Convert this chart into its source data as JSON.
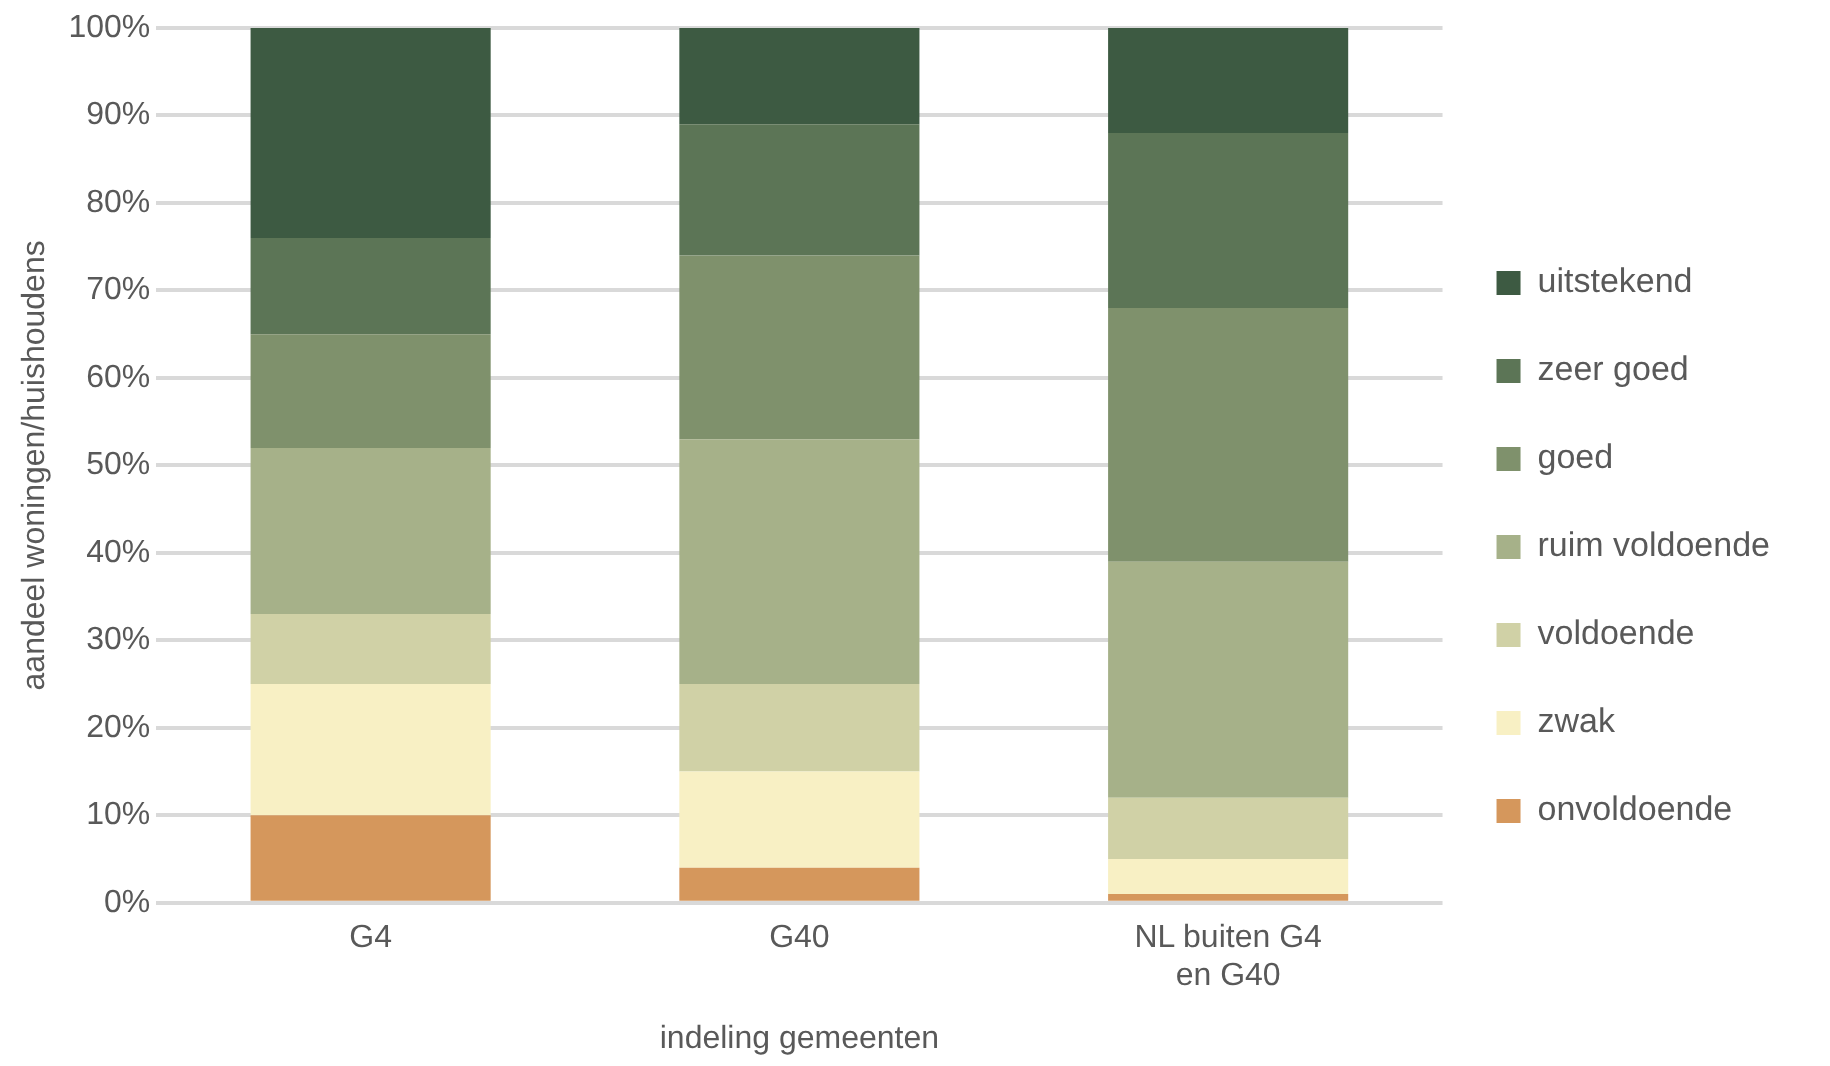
{
  "chart_data": {
    "type": "bar",
    "stacked": true,
    "xlabel": "indeling gemeenten",
    "ylabel": "aandeel woningen/huishoudens",
    "categories": [
      "G4",
      "G40",
      "NL buiten G4 en G40"
    ],
    "series": [
      {
        "name": "onvoldoende",
        "color": "#d5975c",
        "values": [
          10,
          4,
          1
        ]
      },
      {
        "name": "zwak",
        "color": "#f8f0c4",
        "values": [
          15,
          11,
          4
        ]
      },
      {
        "name": "voldoende",
        "color": "#d0d1a6",
        "values": [
          8,
          10,
          7
        ]
      },
      {
        "name": "ruim voldoende",
        "color": "#a6b189",
        "values": [
          19,
          28,
          27
        ]
      },
      {
        "name": "goed",
        "color": "#7f916c",
        "values": [
          13,
          21,
          29
        ]
      },
      {
        "name": "zeer goed",
        "color": "#5c7556",
        "values": [
          11,
          15,
          20
        ]
      },
      {
        "name": "uitstekend",
        "color": "#3d5a42",
        "values": [
          24,
          11,
          12
        ]
      }
    ],
    "ylim": [
      0,
      100
    ],
    "yticks": [
      {
        "value": 0,
        "label": "0%"
      },
      {
        "value": 10,
        "label": "10%"
      },
      {
        "value": 20,
        "label": "20%"
      },
      {
        "value": 30,
        "label": "30%"
      },
      {
        "value": 40,
        "label": "40%"
      },
      {
        "value": 50,
        "label": "50%"
      },
      {
        "value": 60,
        "label": "60%"
      },
      {
        "value": 70,
        "label": "70%"
      },
      {
        "value": 80,
        "label": "80%"
      },
      {
        "value": 90,
        "label": "90%"
      },
      {
        "value": 100,
        "label": "100%"
      }
    ],
    "grid": "y",
    "legend": "right"
  }
}
